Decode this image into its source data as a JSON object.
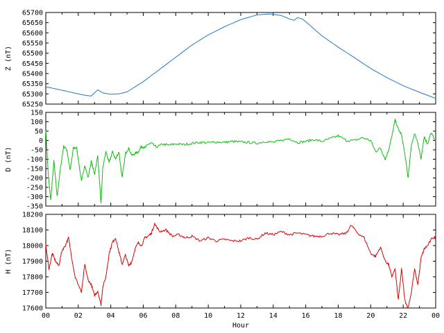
{
  "chart_data": [
    {
      "type": "line",
      "ylabel": "Z (nT)",
      "ylim": [
        65250,
        65700
      ],
      "yticks": [
        65250,
        65300,
        65350,
        65400,
        65450,
        65500,
        65550,
        65600,
        65650,
        65700
      ],
      "xlim": [
        0,
        24
      ],
      "series": [
        {
          "color": "#1f77c8",
          "x": [
            0,
            1,
            2,
            2.5,
            2.8,
            3.0,
            3.2,
            3.5,
            4.0,
            4.5,
            5,
            6,
            7,
            8,
            9,
            10,
            11,
            12,
            13,
            13.8,
            14.5,
            15.0,
            15.3,
            15.5,
            15.8,
            16,
            17,
            18,
            19,
            20,
            21,
            22,
            23,
            24
          ],
          "values": [
            65335,
            65318,
            65300,
            65292,
            65290,
            65305,
            65320,
            65305,
            65298,
            65300,
            65310,
            65360,
            65420,
            65480,
            65540,
            65590,
            65630,
            65665,
            65688,
            65693,
            65685,
            65668,
            65662,
            65675,
            65668,
            65655,
            65585,
            65530,
            65478,
            65425,
            65380,
            65340,
            65308,
            65278
          ]
        }
      ]
    },
    {
      "type": "line",
      "ylabel": "D (nT)",
      "ylim": [
        -350,
        150
      ],
      "yticks": [
        -350,
        -300,
        -250,
        -200,
        -150,
        -100,
        -50,
        0,
        50,
        100,
        150
      ],
      "xlim": [
        0,
        24
      ],
      "series": [
        {
          "color": "#11bb11",
          "x": [
            0,
            0.15,
            0.3,
            0.5,
            0.7,
            0.9,
            1.1,
            1.3,
            1.5,
            1.7,
            1.9,
            2.0,
            2.2,
            2.4,
            2.6,
            2.8,
            3.0,
            3.2,
            3.4,
            3.5,
            3.7,
            3.9,
            4.1,
            4.3,
            4.5,
            4.7,
            4.9,
            5.1,
            5.3,
            5.5,
            5.7,
            5.9,
            6.1,
            6.3,
            6.5,
            6.8,
            7.2,
            7.6,
            8,
            8.5,
            9,
            9.5,
            10,
            10.5,
            11,
            11.5,
            12,
            12.5,
            13,
            13.5,
            14,
            14.5,
            15,
            15.5,
            16,
            16.5,
            17,
            17.5,
            18,
            18.5,
            19,
            19.5,
            20,
            20.3,
            20.6,
            20.9,
            21.1,
            21.3,
            21.5,
            21.7,
            21.9,
            22.1,
            22.3,
            22.5,
            22.7,
            22.9,
            23.1,
            23.3,
            23.5,
            23.7,
            24
          ],
          "values": [
            60,
            -180,
            -320,
            -110,
            -300,
            -150,
            -30,
            -50,
            -160,
            -40,
            -40,
            -100,
            -220,
            -130,
            -200,
            -110,
            -180,
            -80,
            -340,
            -150,
            -60,
            -120,
            -60,
            -100,
            -60,
            -200,
            -70,
            -40,
            -80,
            -70,
            -60,
            -30,
            -40,
            -20,
            -15,
            -35,
            -20,
            -25,
            -18,
            -22,
            -15,
            -10,
            -12,
            -8,
            -10,
            -5,
            -8,
            -10,
            -15,
            -5,
            -10,
            0,
            10,
            -10,
            -5,
            5,
            -5,
            10,
            25,
            0,
            0,
            15,
            0,
            -60,
            -40,
            -100,
            -50,
            20,
            110,
            60,
            30,
            -70,
            -200,
            -30,
            40,
            -10,
            -100,
            20,
            -20,
            40,
            0
          ]
        }
      ]
    },
    {
      "type": "line",
      "ylabel": "H (nT)",
      "xlabel": "Hour",
      "ylim": [
        17600,
        18200
      ],
      "yticks": [
        17600,
        17700,
        17800,
        17900,
        18000,
        18100,
        18200
      ],
      "xlim": [
        0,
        24
      ],
      "xticks": [
        "00",
        "02",
        "04",
        "06",
        "08",
        "10",
        "12",
        "14",
        "16",
        "18",
        "20",
        "22",
        "00"
      ],
      "series": [
        {
          "color": "#dd0000",
          "x": [
            0,
            0.2,
            0.4,
            0.6,
            0.8,
            1.0,
            1.2,
            1.4,
            1.6,
            1.8,
            2.0,
            2.2,
            2.4,
            2.6,
            2.8,
            3.0,
            3.2,
            3.4,
            3.5,
            3.7,
            3.9,
            4.1,
            4.3,
            4.5,
            4.7,
            4.9,
            5.1,
            5.3,
            5.5,
            5.7,
            5.9,
            6.1,
            6.3,
            6.5,
            6.7,
            7.0,
            7.4,
            7.8,
            8.2,
            8.6,
            9,
            9.5,
            10,
            10.5,
            11,
            11.5,
            12,
            12.5,
            13,
            13.5,
            14,
            14.5,
            15,
            15.5,
            16,
            16.5,
            17,
            17.5,
            18,
            18.5,
            18.8,
            19.2,
            19.6,
            20,
            20.3,
            20.6,
            20.9,
            21.1,
            21.3,
            21.5,
            21.7,
            21.9,
            22.1,
            22.3,
            22.5,
            22.7,
            22.9,
            23.1,
            23.3,
            23.5,
            23.8,
            24
          ],
          "values": [
            18000,
            17850,
            17950,
            17900,
            17870,
            17970,
            18000,
            18050,
            17920,
            17800,
            17750,
            17700,
            17880,
            17780,
            17750,
            17680,
            17710,
            17620,
            17730,
            17800,
            17950,
            18020,
            18050,
            17960,
            17880,
            17940,
            17870,
            17900,
            17980,
            18020,
            18000,
            18050,
            18060,
            18080,
            18140,
            18090,
            18100,
            18060,
            18070,
            18050,
            18060,
            18030,
            18050,
            18030,
            18040,
            18030,
            18030,
            18050,
            18040,
            18080,
            18070,
            18090,
            18070,
            18080,
            18070,
            18060,
            18060,
            18080,
            18070,
            18080,
            18130,
            18080,
            18050,
            17950,
            17930,
            17990,
            17900,
            17880,
            17800,
            17850,
            17650,
            17850,
            17650,
            17600,
            17700,
            17850,
            17750,
            17920,
            17980,
            18000,
            18050,
            18050
          ]
        }
      ]
    }
  ]
}
